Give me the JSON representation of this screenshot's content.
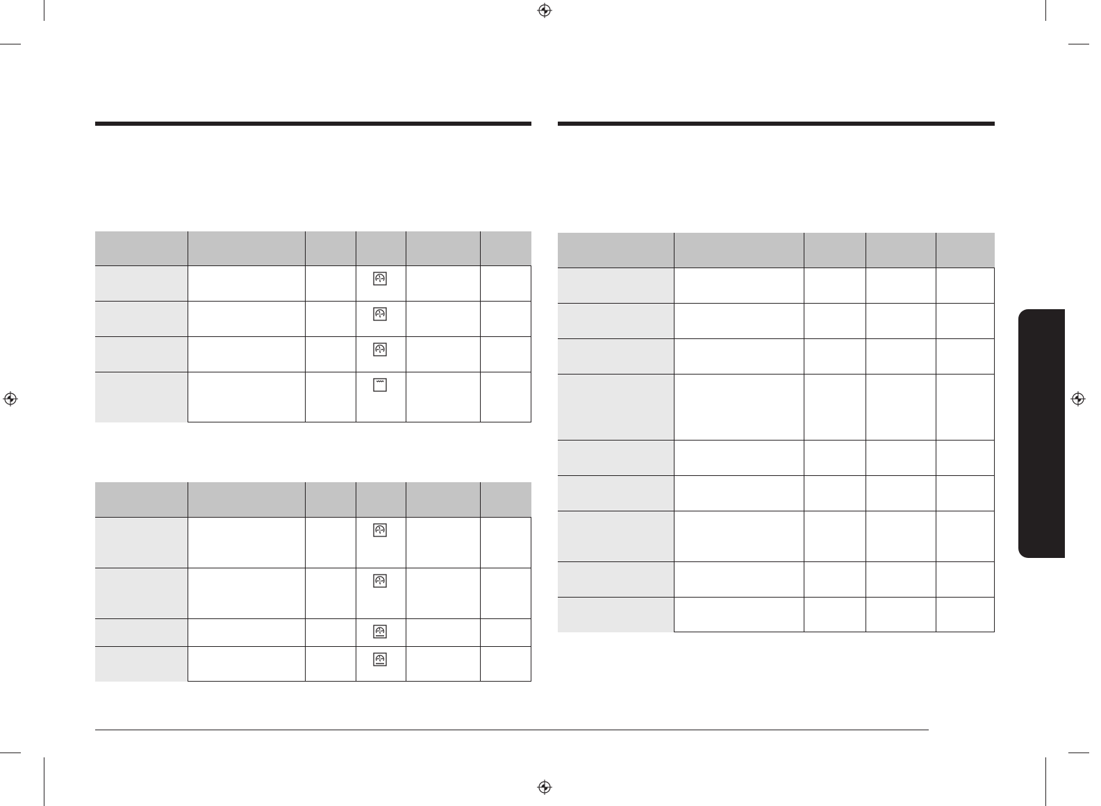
{
  "colors": {
    "rule": "#231f20",
    "header_fill": "#c4c4c4",
    "first_column_fill": "#e8e8e8",
    "side_tab": "#231f20"
  },
  "tables": [
    {
      "name": "table-1",
      "icons": [
        "fan-icon",
        "fan-icon",
        "fan-icon",
        "top-heat-icon"
      ]
    },
    {
      "name": "table-2",
      "icons": [
        "fan-icon",
        "fan-icon",
        "fan-bottom-heat-icon",
        "fan-bottom-heat-icon"
      ]
    },
    {
      "name": "table-3",
      "icons": []
    }
  ]
}
